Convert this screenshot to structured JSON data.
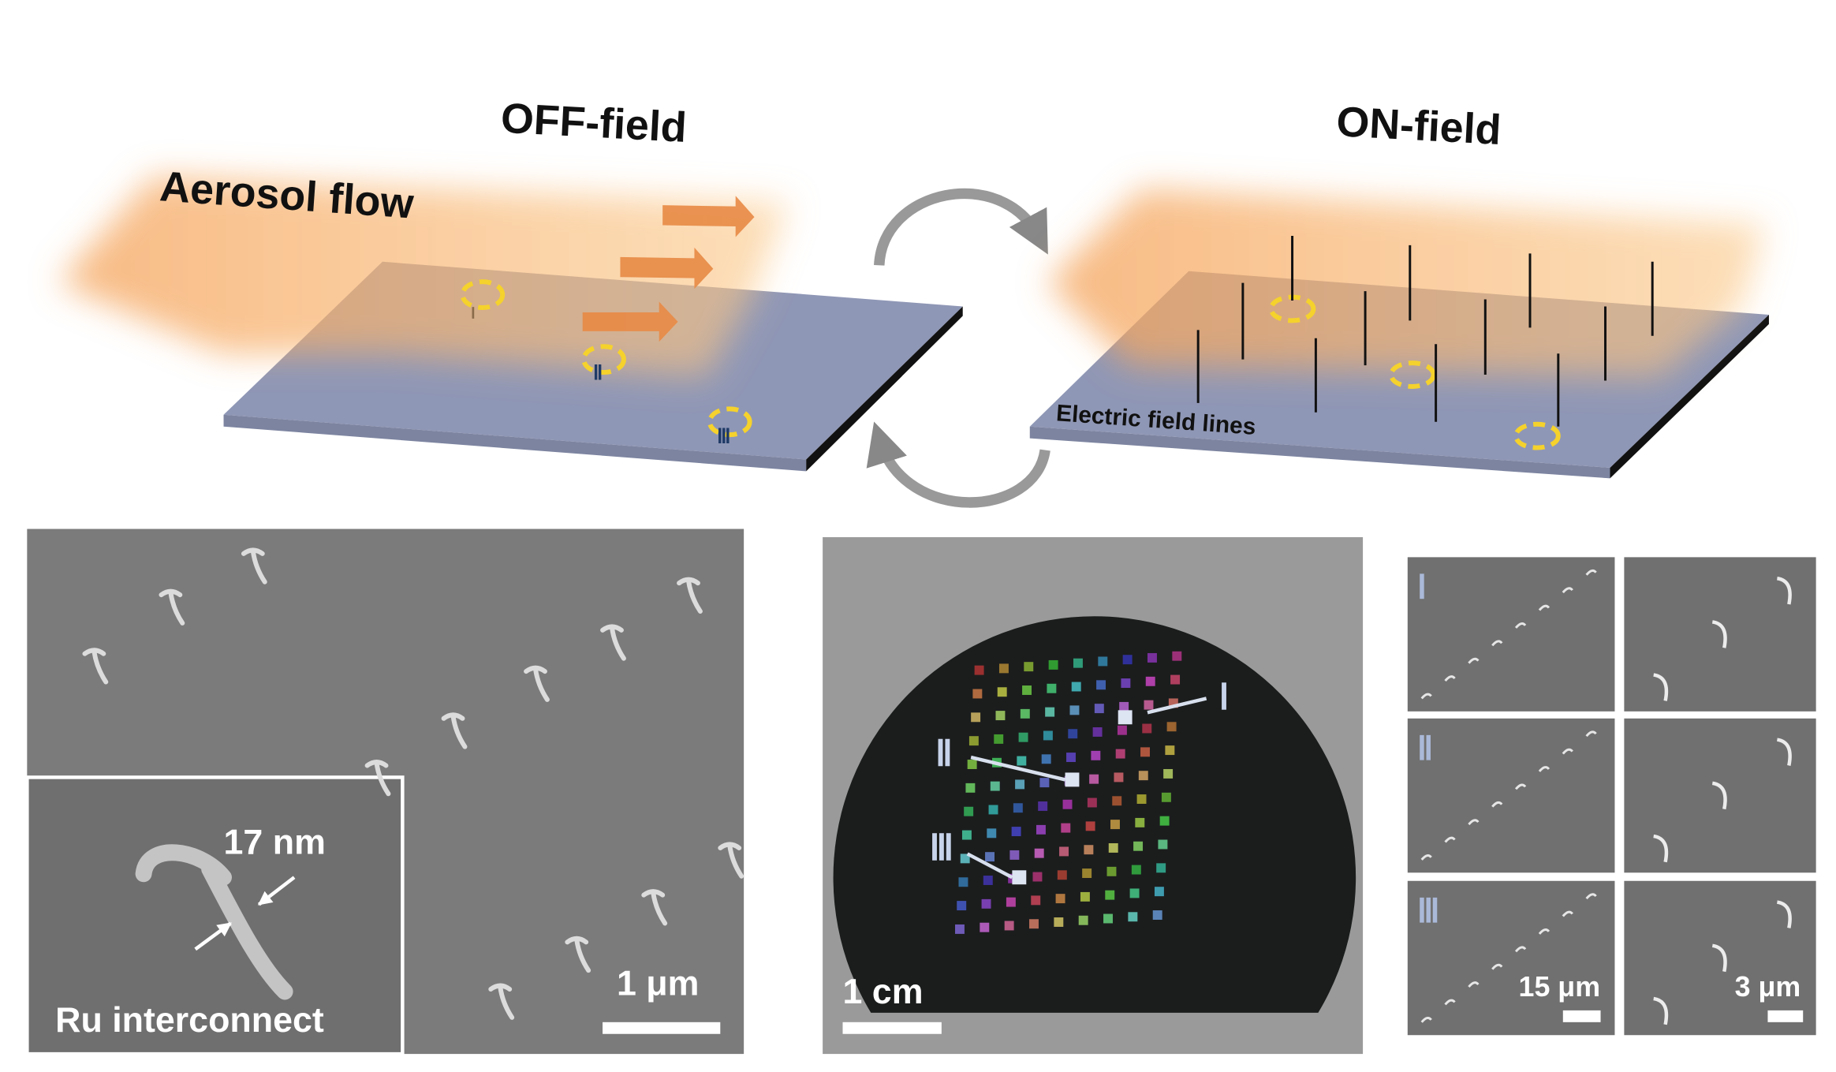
{
  "off_field": {
    "title": "OFF-field",
    "flow_label": "Aerosol flow",
    "site_labels": [
      "Ⅰ",
      "Ⅱ",
      "Ⅲ"
    ]
  },
  "on_field": {
    "title": "ON-field",
    "field_label": "Electric field lines"
  },
  "sem": {
    "inset_width": "17 nm",
    "inset_caption": "Ru interconnect",
    "scale_bar": "1 μm"
  },
  "wafer": {
    "scale_bar": "1 cm",
    "site_labels": [
      "Ⅰ",
      "Ⅱ",
      "Ⅲ"
    ]
  },
  "arrays": {
    "row_labels": [
      "Ⅰ",
      "Ⅱ",
      "Ⅲ"
    ],
    "scale_bars": [
      "15 μm",
      "3 μm"
    ]
  }
}
